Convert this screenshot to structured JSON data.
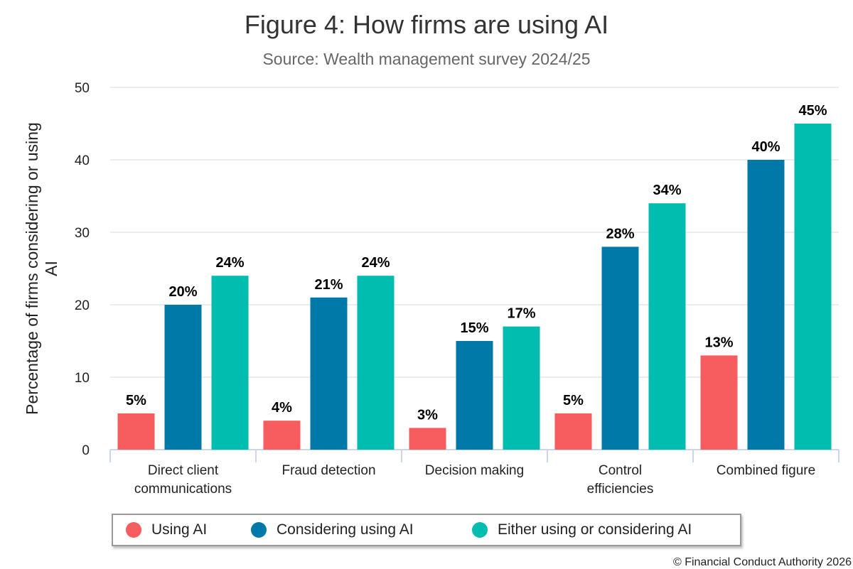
{
  "colors": {
    "using": "#f75c5e",
    "considering": "#0078a8",
    "either": "#00bdb0",
    "grid": "#e6e6e6",
    "axis": "#ccd6eb"
  },
  "credit": "© Financial Conduct Authority 2026",
  "chart_data": {
    "type": "bar",
    "title": "Figure 4: How firms are using AI",
    "subtitle": "Source: Wealth management survey 2024/25",
    "xlabel": "",
    "ylabel": "Percentage of firms considering or using AI",
    "ylim": [
      0,
      50
    ],
    "yticks": [
      0,
      10,
      20,
      30,
      40,
      50
    ],
    "grid": true,
    "legend_position": "bottom",
    "categories": [
      [
        "Direct client",
        "communications"
      ],
      [
        "Fraud detection"
      ],
      [
        "Decision making"
      ],
      [
        "Control",
        "efficiencies"
      ],
      [
        "Combined figure"
      ]
    ],
    "series": [
      {
        "name": "Using AI",
        "color_key": "using",
        "values": [
          5,
          4,
          3,
          5,
          13
        ],
        "labels": [
          "5%",
          "4%",
          "3%",
          "5%",
          "13%"
        ]
      },
      {
        "name": "Considering using AI",
        "color_key": "considering",
        "values": [
          20,
          21,
          15,
          28,
          40
        ],
        "labels": [
          "20%",
          "21%",
          "15%",
          "28%",
          "40%"
        ]
      },
      {
        "name": "Either using or considering AI",
        "color_key": "either",
        "values": [
          24,
          24,
          17,
          34,
          45
        ],
        "labels": [
          "24%",
          "24%",
          "17%",
          "34%",
          "45%"
        ]
      }
    ]
  }
}
